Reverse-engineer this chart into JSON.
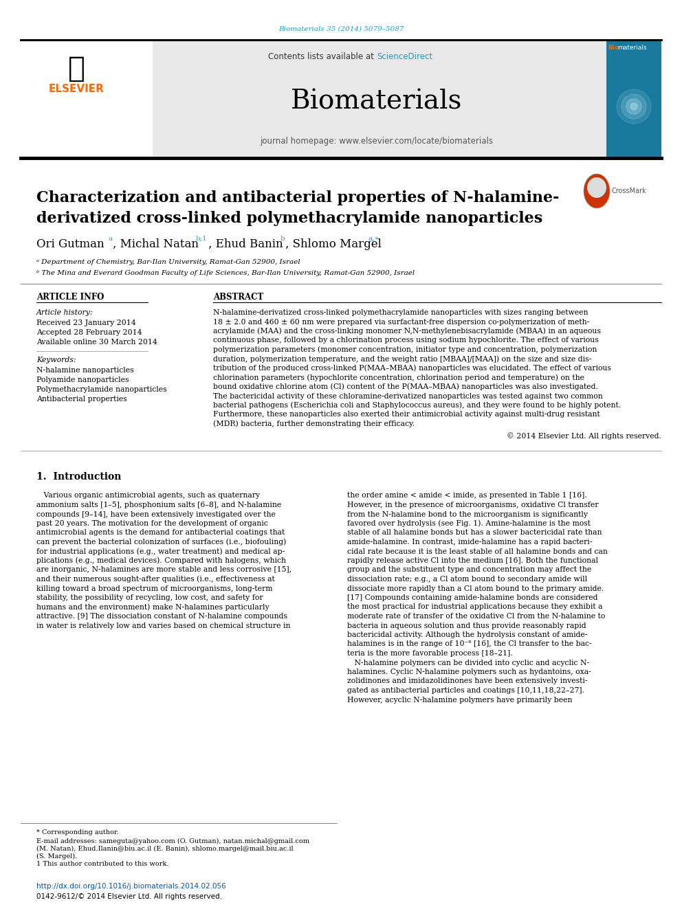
{
  "bg_color": "#ffffff",
  "header_citation": "Biomaterials 35 (2014) 5079–5087",
  "header_citation_color": "#1a9ebf",
  "journal_name": "Biomaterials",
  "contents_text": "Contents lists available at ",
  "sciencedirect_text": "ScienceDirect",
  "sciencedirect_color": "#1a9ebf",
  "journal_homepage": "journal homepage: www.elsevier.com/locate/biomaterials",
  "journal_homepage_color": "#555555",
  "header_bg": "#e8e8e8",
  "elsevier_color": "#FF6600",
  "title_line1": "Characterization and antibacterial properties of N-halamine-",
  "title_line2": "derivatized cross-linked polymethacrylamide nanoparticles",
  "affiliation_a": "ᵃ Department of Chemistry, Bar-Ilan University, Ramat-Gan 52900, Israel",
  "affiliation_b": "ᵇ The Mina and Everard Goodman Faculty of Life Sciences, Bar-Ilan University, Ramat-Gan 52900, Israel",
  "article_info_title": "ARTICLE INFO",
  "article_history_title": "Article history:",
  "received": "Received 23 January 2014",
  "accepted": "Accepted 28 February 2014",
  "available": "Available online 30 March 2014",
  "keywords_title": "Keywords:",
  "keyword1": "N-halamine nanoparticles",
  "keyword2": "Polyamide nanoparticles",
  "keyword3": "Polymethacrylamide nanoparticles",
  "keyword4": "Antibacterial properties",
  "abstract_title": "ABSTRACT",
  "abstract_lines": [
    "N-halamine-derivatized cross-linked polymethacrylamide nanoparticles with sizes ranging between",
    "18 ± 2.0 and 460 ± 60 nm were prepared via surfactant-free dispersion co-polymerization of meth-",
    "acrylamide (MAA) and the cross-linking monomer N,N-methylenebisacrylamide (MBAA) in an aqueous",
    "continuous phase, followed by a chlorination process using sodium hypochlorite. The effect of various",
    "polymerization parameters (monomer concentration, initiator type and concentration, polymerization",
    "duration, polymerization temperature, and the weight ratio [MBAA]/[MAA]) on the size and size dis-",
    "tribution of the produced cross-linked P(MAA–MBAA) nanoparticles was elucidated. The effect of various",
    "chlorination parameters (hypochlorite concentration, chlorination period and temperature) on the",
    "bound oxidative chlorine atom (Cl) content of the P(MAA–MBAA) nanoparticles was also investigated.",
    "The bactericidal activity of these chloramine-derivatized nanoparticles was tested against two common",
    "bacterial pathogens (Escherichia coli and Staphylococcus aureus), and they were found to be highly potent.",
    "Furthermore, these nanoparticles also exerted their antimicrobial activity against multi-drug resistant",
    "(MDR) bacteria, further demonstrating their efficacy."
  ],
  "copyright": "© 2014 Elsevier Ltd. All rights reserved.",
  "section1_title": "1.  Introduction",
  "intro_col1_lines": [
    "   Various organic antimicrobial agents, such as quaternary",
    "ammonium salts [1–5], phosphonium salts [6–8], and N-halamine",
    "compounds [9–14], have been extensively investigated over the",
    "past 20 years. The motivation for the development of organic",
    "antimicrobial agents is the demand for antibacterial coatings that",
    "can prevent the bacterial colonization of surfaces (i.e., biofouling)",
    "for industrial applications (e.g., water treatment) and medical ap-",
    "plications (e.g., medical devices). Compared with halogens, which",
    "are inorganic, N-halamines are more stable and less corrosive [15],",
    "and their numerous sought-after qualities (i.e., effectiveness at",
    "killing toward a broad spectrum of microorganisms, long-term",
    "stability, the possibility of recycling, low cost, and safety for",
    "humans and the environment) make N-halamines particularly",
    "attractive. [9] The dissociation constant of N-halamine compounds",
    "in water is relatively low and varies based on chemical structure in"
  ],
  "intro_col2_lines": [
    "the order amine < amide < imide, as presented in Table 1 [16].",
    "However, in the presence of microorganisms, oxidative Cl transfer",
    "from the N-halamine bond to the microorganism is significantly",
    "favored over hydrolysis (see Fig. 1). Amine-halamine is the most",
    "stable of all halamine bonds but has a slower bactericidal rate than",
    "amide-halamine. In contrast, imide-halamine has a rapid bacteri-",
    "cidal rate because it is the least stable of all halamine bonds and can",
    "rapidly release active Cl into the medium [16]. Both the functional",
    "group and the substituent type and concentration may affect the",
    "dissociation rate; e.g., a Cl atom bound to secondary amide will",
    "dissociate more rapidly than a Cl atom bound to the primary amide.",
    "[17] Compounds containing amide-halamine bonds are considered",
    "the most practical for industrial applications because they exhibit a",
    "moderate rate of transfer of the oxidative Cl from the N-halamine to",
    "bacteria in aqueous solution and thus provide reasonably rapid",
    "bactericidal activity. Although the hydrolysis constant of amide-",
    "halamines is in the range of 10⁻⁸ [16], the Cl transfer to the bac-",
    "teria is the more favorable process [18–21].",
    "   N-halamine polymers can be divided into cyclic and acyclic N-",
    "halamines. Cyclic N-halamine polymers such as hydantoins, oxa-",
    "zolidinones and imidazolidinones have been extensively investi-",
    "gated as antibacterial particles and coatings [10,11,18,22–27].",
    "However, acyclic N-halamine polymers have primarily been"
  ],
  "footnote_corresponding": "* Corresponding author.",
  "footnote_email_lines": [
    "E-mail addresses: sameguta@yahoo.com (O. Gutman), natan.michal@gmail.com",
    "(M. Natan), Ehud.Ilanin@biu.ac.il (E. Banin), shlomo.margel@mail.biu.ac.il",
    "(S. Margel)."
  ],
  "footnote1": "1 This author contributed to this work.",
  "doi": "http://dx.doi.org/10.1016/j.biomaterials.2014.02.056",
  "doi_color": "#0055aa",
  "issn": "0142-9612/© 2014 Elsevier Ltd. All rights reserved.",
  "link_color": "#1a9ebf",
  "ref_link_color": "#1a9ebf"
}
